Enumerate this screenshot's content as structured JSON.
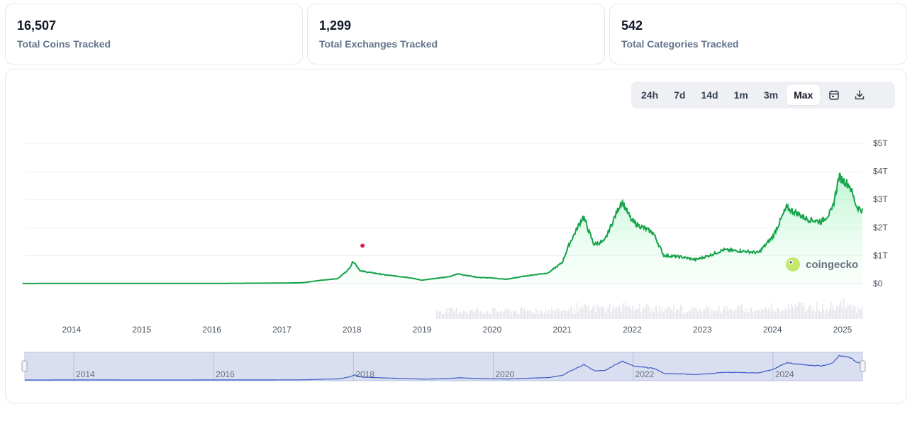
{
  "stats": [
    {
      "value": "16,507",
      "label": "Total Coins Tracked"
    },
    {
      "value": "1,299",
      "label": "Total Exchanges Tracked"
    },
    {
      "value": "542",
      "label": "Total Categories Tracked"
    }
  ],
  "range_buttons": [
    "24h",
    "7d",
    "14d",
    "1m",
    "3m",
    "Max"
  ],
  "active_range": "Max",
  "icons": {
    "calendar": "calendar-icon",
    "download": "download-icon"
  },
  "watermark": "coingecko",
  "colors": {
    "line": "#16a34a",
    "area_top": "#bbf7d0",
    "volume": "#e5e7eb",
    "navigator": "#3b5bc7",
    "navigator_bg": "#d9def0"
  },
  "chart_data": {
    "type": "area",
    "title": "",
    "ylabel": "",
    "y_ticks": [
      "$0",
      "$1T",
      "$2T",
      "$3T",
      "$4T",
      "$5T"
    ],
    "ylim": [
      0,
      5
    ],
    "x_ticks": [
      "2014",
      "2015",
      "2016",
      "2017",
      "2018",
      "2019",
      "2020",
      "2021",
      "2022",
      "2023",
      "2024",
      "2025"
    ],
    "navigator_ticks": [
      "2014",
      "2016",
      "2018",
      "2020",
      "2022",
      "2024"
    ],
    "series": [
      {
        "values_trillion_usd": [
          [
            2013.3,
            0.002
          ],
          [
            2014.0,
            0.008
          ],
          [
            2015.0,
            0.004
          ],
          [
            2016.0,
            0.006
          ],
          [
            2017.0,
            0.018
          ],
          [
            2017.3,
            0.03
          ],
          [
            2017.5,
            0.1
          ],
          [
            2017.8,
            0.18
          ],
          [
            2017.95,
            0.5
          ],
          [
            2018.02,
            0.8
          ],
          [
            2018.12,
            0.45
          ],
          [
            2018.3,
            0.38
          ],
          [
            2018.5,
            0.3
          ],
          [
            2018.8,
            0.22
          ],
          [
            2019.0,
            0.12
          ],
          [
            2019.4,
            0.25
          ],
          [
            2019.5,
            0.35
          ],
          [
            2019.8,
            0.22
          ],
          [
            2020.0,
            0.2
          ],
          [
            2020.2,
            0.15
          ],
          [
            2020.5,
            0.28
          ],
          [
            2020.8,
            0.38
          ],
          [
            2021.0,
            0.75
          ],
          [
            2021.1,
            1.4
          ],
          [
            2021.3,
            2.4
          ],
          [
            2021.45,
            1.4
          ],
          [
            2021.6,
            1.5
          ],
          [
            2021.85,
            2.95
          ],
          [
            2022.0,
            2.2
          ],
          [
            2022.3,
            1.8
          ],
          [
            2022.45,
            1.0
          ],
          [
            2022.7,
            0.95
          ],
          [
            2022.9,
            0.85
          ],
          [
            2023.1,
            1.0
          ],
          [
            2023.3,
            1.2
          ],
          [
            2023.6,
            1.15
          ],
          [
            2023.8,
            1.1
          ],
          [
            2024.0,
            1.65
          ],
          [
            2024.2,
            2.7
          ],
          [
            2024.5,
            2.3
          ],
          [
            2024.7,
            2.2
          ],
          [
            2024.85,
            2.6
          ],
          [
            2024.95,
            3.8
          ],
          [
            2025.1,
            3.5
          ],
          [
            2025.2,
            2.75
          ],
          [
            2025.28,
            2.6
          ]
        ]
      }
    ],
    "marker": {
      "x": 2018.15,
      "y": 1.35
    }
  }
}
